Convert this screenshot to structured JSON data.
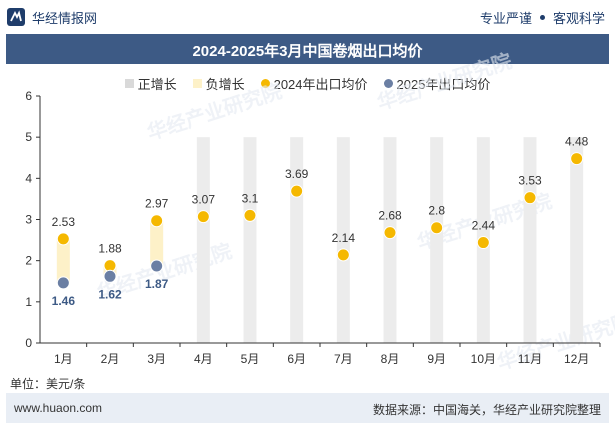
{
  "header": {
    "brand": "华经情报网",
    "tagline_left": "专业严谨",
    "tagline_right": "客观科学"
  },
  "legend": {
    "positive": "正增长",
    "negative": "负增长",
    "series2024": "2024年出口均价",
    "series2025": "2025年出口均价"
  },
  "unit_label": "单位：美元/条",
  "footer": {
    "website": "www.huaon.com",
    "source": "数据来源：中国海关，华经产业研究院整理"
  },
  "watermark": "华经产业研究院",
  "colors": {
    "header_bg": "#3d5a85",
    "bar_grey": "#ececec",
    "bar_yellow": "#fdf1c8",
    "series2024": "#f5b800",
    "series2025": "#6b7fa3",
    "footer_bg": "#e9eef5"
  },
  "chart_data": {
    "type": "line",
    "title": "2024-2025年3月中国卷烟出口均价",
    "categories": [
      "1月",
      "2月",
      "3月",
      "4月",
      "5月",
      "6月",
      "7月",
      "8月",
      "9月",
      "10月",
      "11月",
      "12月"
    ],
    "ylim": [
      0,
      6
    ],
    "yticks": [
      0,
      1,
      2,
      3,
      4,
      5,
      6
    ],
    "grid": false,
    "legend_position": "top",
    "series": [
      {
        "name": "2024年出口均价",
        "values": [
          2.53,
          1.88,
          2.97,
          3.07,
          3.1,
          3.69,
          2.14,
          2.68,
          2.8,
          2.44,
          3.53,
          4.48
        ]
      },
      {
        "name": "2025年出口均价",
        "values": [
          1.46,
          1.62,
          1.87,
          null,
          null,
          null,
          null,
          null,
          null,
          null,
          null,
          null
        ]
      }
    ],
    "change_bars": {
      "positive": {
        "name": "正增长",
        "values": [
          null,
          null,
          null,
          5,
          5,
          5,
          5,
          5,
          5,
          5,
          5,
          5
        ]
      },
      "negative": {
        "name": "负增长",
        "values": [
          [
            1.46,
            2.53
          ],
          [
            1.62,
            1.88
          ],
          [
            1.87,
            2.97
          ],
          null,
          null,
          null,
          null,
          null,
          null,
          null,
          null,
          null
        ]
      }
    }
  }
}
